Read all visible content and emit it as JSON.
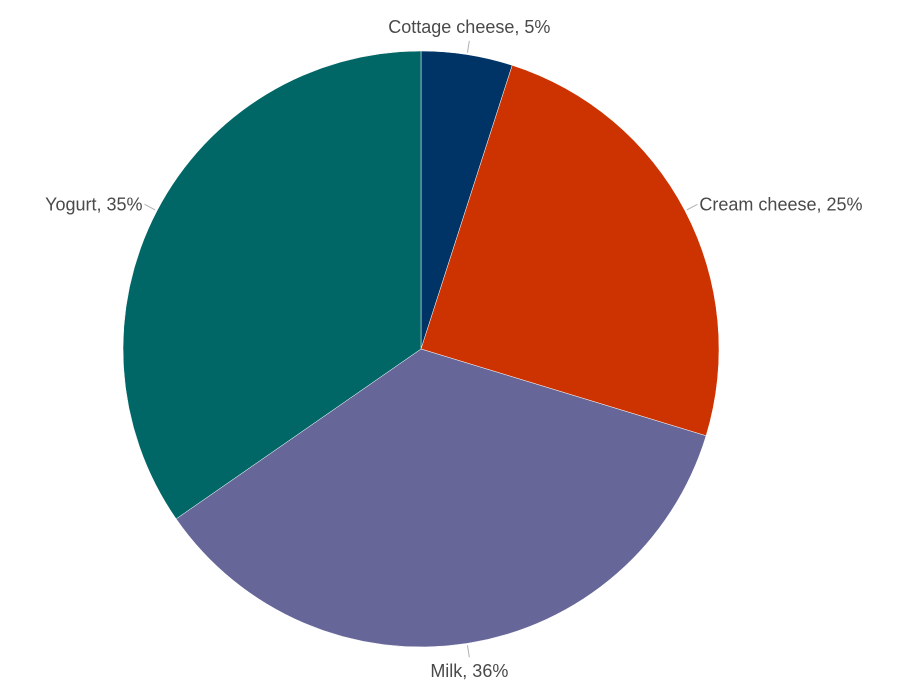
{
  "chart_data": {
    "type": "pie",
    "title": "",
    "start_angle_deg": 0,
    "direction": "clockwise",
    "slices": [
      {
        "label": "Cottage cheese",
        "value": 5,
        "display": "Cottage cheese, 5%",
        "color": "#003366"
      },
      {
        "label": "Cream cheese",
        "value": 25,
        "display": "Cream cheese, 25%",
        "color": "#cc3300"
      },
      {
        "label": "Milk",
        "value": 36,
        "display": "Milk, 36%",
        "color": "#666699"
      },
      {
        "label": "Yogurt",
        "value": 35,
        "display": "Yogurt, 35%",
        "color": "#006666"
      }
    ],
    "unit": "%"
  }
}
